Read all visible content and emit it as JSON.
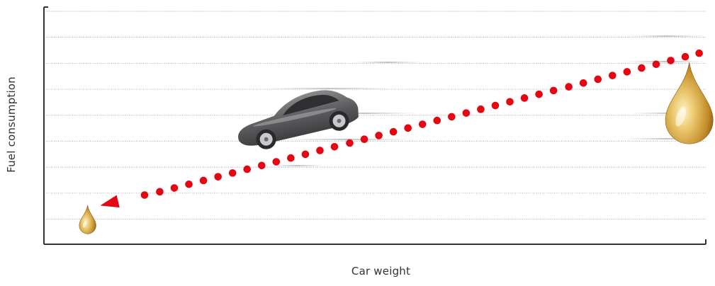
{
  "chart_data": {
    "type": "scatter",
    "xlabel": "Car weight",
    "ylabel": "Fuel consumption",
    "grid": true,
    "xlim": [
      0,
      100
    ],
    "ylim": [
      0,
      100
    ],
    "series": [
      {
        "points": [
          {
            "x": 15.2,
            "y": 21.0
          },
          {
            "x": 17.5,
            "y": 22.4
          },
          {
            "x": 19.7,
            "y": 24.0
          },
          {
            "x": 21.9,
            "y": 25.6
          },
          {
            "x": 24.1,
            "y": 27.2
          },
          {
            "x": 26.3,
            "y": 28.8
          },
          {
            "x": 28.5,
            "y": 30.4
          },
          {
            "x": 30.7,
            "y": 32.0
          },
          {
            "x": 32.9,
            "y": 33.6
          },
          {
            "x": 35.1,
            "y": 35.2
          },
          {
            "x": 37.3,
            "y": 36.8
          },
          {
            "x": 39.5,
            "y": 38.4
          },
          {
            "x": 41.7,
            "y": 40.0
          },
          {
            "x": 43.9,
            "y": 41.6
          },
          {
            "x": 46.2,
            "y": 43.2
          },
          {
            "x": 48.4,
            "y": 44.8
          },
          {
            "x": 50.6,
            "y": 46.4
          },
          {
            "x": 52.8,
            "y": 48.0
          },
          {
            "x": 55.0,
            "y": 49.6
          },
          {
            "x": 57.2,
            "y": 51.2
          },
          {
            "x": 59.4,
            "y": 52.8
          },
          {
            "x": 61.6,
            "y": 54.4
          },
          {
            "x": 63.8,
            "y": 56.0
          },
          {
            "x": 66.0,
            "y": 57.6
          },
          {
            "x": 68.2,
            "y": 59.2
          },
          {
            "x": 70.4,
            "y": 60.8
          },
          {
            "x": 72.6,
            "y": 62.4
          },
          {
            "x": 74.8,
            "y": 64.0
          },
          {
            "x": 77.0,
            "y": 65.6
          },
          {
            "x": 79.3,
            "y": 67.2
          },
          {
            "x": 81.5,
            "y": 68.8
          },
          {
            "x": 83.7,
            "y": 70.4
          },
          {
            "x": 85.9,
            "y": 72.0
          },
          {
            "x": 88.1,
            "y": 73.6
          },
          {
            "x": 90.3,
            "y": 75.2
          },
          {
            "x": 92.5,
            "y": 76.8
          },
          {
            "x": 94.7,
            "y": 78.4
          },
          {
            "x": 96.9,
            "y": 80.0
          },
          {
            "x": 99.0,
            "y": 81.5
          }
        ],
        "color": "#e30613"
      }
    ],
    "arrow": {
      "from": {
        "x": 15.2,
        "y": 21.0
      },
      "to": {
        "x": 8.5,
        "y": 16.5
      },
      "color": "#e30613"
    },
    "icons": [
      {
        "name": "small-oil-drop-icon",
        "x": 6.6,
        "y": 8.0,
        "size": "small"
      },
      {
        "name": "car-icon",
        "x": 38.0,
        "y": 53.0,
        "size": "medium"
      },
      {
        "name": "large-oil-drop-icon",
        "x": 97.5,
        "y": 53.0,
        "size": "large"
      }
    ],
    "colors": {
      "points": "#e30613",
      "axis": "#333333",
      "grid": "#9a9a9a",
      "car": "#5c5c5e",
      "oil": "#c8952b"
    }
  }
}
